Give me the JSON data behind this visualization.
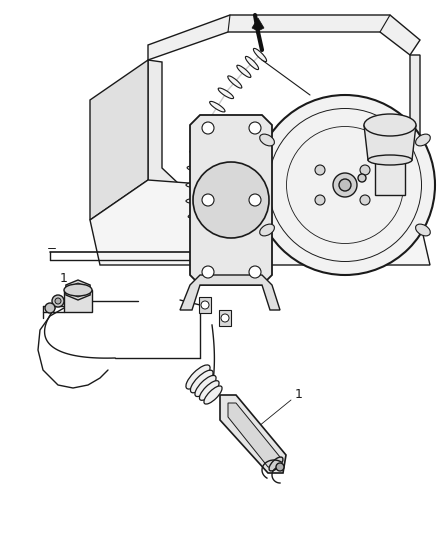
{
  "bg_color": "#ffffff",
  "line_color": "#1a1a1a",
  "fig_width": 4.38,
  "fig_height": 5.33,
  "dpi": 100,
  "lw": 1.0
}
